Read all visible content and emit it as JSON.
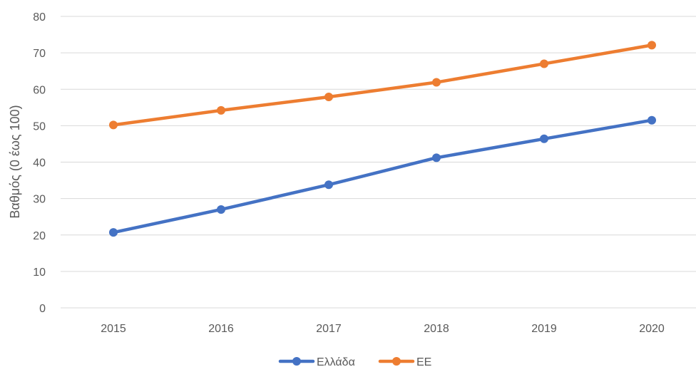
{
  "chart_data": {
    "type": "line",
    "title": "",
    "xlabel": "",
    "ylabel": "Βαθμός (0 έως 100)",
    "categories": [
      "2015",
      "2016",
      "2017",
      "2018",
      "2019",
      "2020"
    ],
    "ylim": [
      0,
      80
    ],
    "yticks": [
      0,
      10,
      20,
      30,
      40,
      50,
      60,
      70,
      80
    ],
    "grid": true,
    "legend_position": "bottom",
    "series": [
      {
        "name": "Ελλάδα",
        "color": "#4472C4",
        "values": [
          20.7,
          27.0,
          33.8,
          41.2,
          46.4,
          51.5
        ]
      },
      {
        "name": "ΕΕ",
        "color": "#ED7D31",
        "values": [
          50.2,
          54.2,
          57.9,
          61.9,
          67.0,
          72.1
        ]
      }
    ]
  }
}
